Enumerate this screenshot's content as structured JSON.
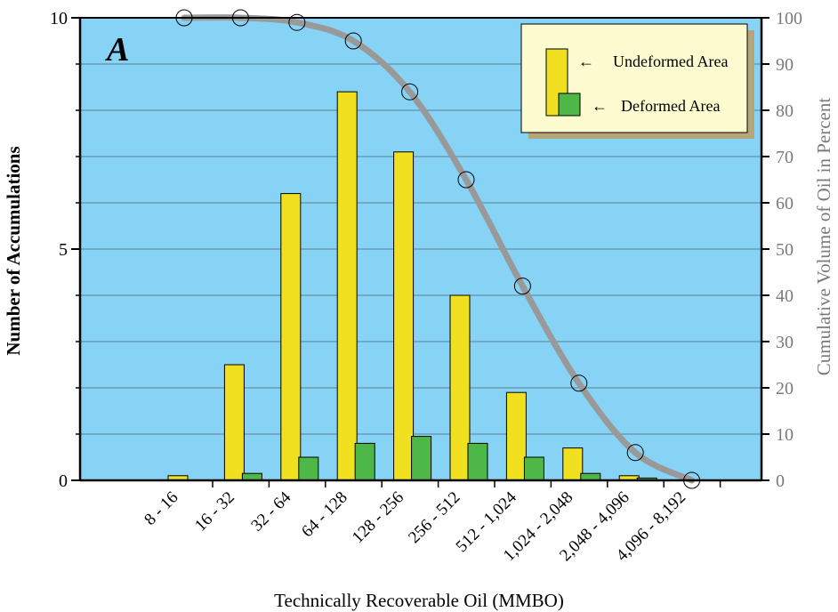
{
  "panel_label": "A",
  "chart_data": {
    "type": "bar",
    "categories": [
      "8 - 16",
      "16 - 32",
      "32 - 64",
      "64 - 128",
      "128 - 256",
      "256 - 512",
      "512 - 1,024",
      "1,024 - 2,048",
      "2,048 - 4,096",
      "4,096 - 8,192"
    ],
    "series": [
      {
        "name": "Undeformed Area",
        "values": [
          0.1,
          2.5,
          6.2,
          8.4,
          7.1,
          4.0,
          1.9,
          0.7,
          0.1,
          0.0
        ],
        "color": "#f0e020"
      },
      {
        "name": "Deformed Area",
        "values": [
          0.0,
          0.15,
          0.5,
          0.8,
          0.95,
          0.8,
          0.5,
          0.15,
          0.05,
          0.0
        ],
        "color": "#4db848"
      }
    ],
    "cumulative_line": {
      "axis": "right",
      "values": [
        100,
        100,
        99,
        95,
        84,
        65,
        42,
        21,
        6,
        0
      ],
      "color": "#999999"
    },
    "xlabel": "Technically Recoverable Oil (MMBO)",
    "ylabel": "Number of Accumulations",
    "y2label": "Cumulative Volume of Oil in Percent",
    "ylim": [
      0,
      10
    ],
    "y2lim": [
      0,
      100
    ],
    "yticks": [
      0,
      5,
      10
    ],
    "y2ticks": [
      0,
      10,
      20,
      30,
      40,
      50,
      60,
      70,
      80,
      90,
      100
    ],
    "grid": true,
    "legend_position": "top-right",
    "background": "#87d3f5"
  }
}
